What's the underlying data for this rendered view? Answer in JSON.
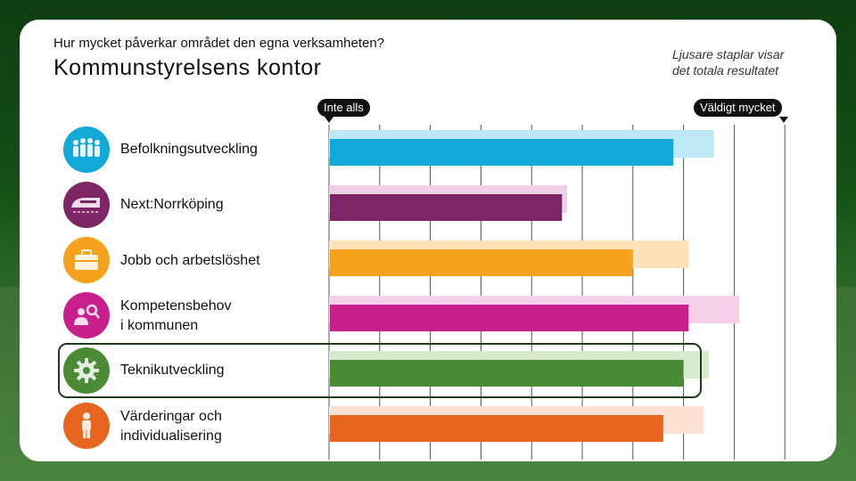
{
  "header": {
    "question": "Hur mycket påverkar området den egna verksamheten?",
    "title": "Kommunstyrelsens kontor",
    "note_line1": "Ljusare staplar visar",
    "note_line2": "det totala resultatet"
  },
  "scale": {
    "min_label": "Inte alls",
    "max_label": "Väldigt mycket"
  },
  "chart_data": {
    "type": "bar",
    "orientation": "horizontal",
    "xlim": [
      0,
      9
    ],
    "grid": true,
    "categories": [
      "Befolkningsutveckling",
      "Next:Norrköping",
      "Jobb och arbetslöshet",
      "Kompetensbehov i kommunen",
      "Teknikutveckling",
      "Värderingar och individualisering"
    ],
    "series": [
      {
        "values": [
          7.6,
          4.7,
          7.1,
          8.1,
          7.5,
          7.4
        ]
      },
      {
        "values": [
          6.8,
          4.6,
          6.0,
          7.1,
          7.0,
          6.6
        ]
      }
    ],
    "colors": {
      "dark": [
        "#12a9d8",
        "#7e2566",
        "#f5a21c",
        "#c81f8c",
        "#4c8b35",
        "#e8651f"
      ],
      "light": [
        "#bfe8f6",
        "#eed0e6",
        "#fde1b8",
        "#f6d0e8",
        "#d8ebcf",
        "#fbe0d3"
      ]
    },
    "highlighted": "Teknikutveckling"
  },
  "rows": [
    {
      "label_line1": "Befolkningsutveckling",
      "label_line2": "",
      "icon": "people-icon",
      "color": "#12a9d8"
    },
    {
      "label_line1": "Next:Norrköping",
      "label_line2": "",
      "icon": "train-icon",
      "color": "#7e2566"
    },
    {
      "label_line1": "Jobb och arbetslöshet",
      "label_line2": "",
      "icon": "briefcase-icon",
      "color": "#f5a21c"
    },
    {
      "label_line1": "Kompetensbehov",
      "label_line2": "i kommunen",
      "icon": "person-search-icon",
      "color": "#c81f8c"
    },
    {
      "label_line1": "Teknikutveckling",
      "label_line2": "",
      "icon": "gear-icon",
      "color": "#4c8b35"
    },
    {
      "label_line1": "Värderingar och",
      "label_line2": "individualisering",
      "icon": "person-icon",
      "color": "#e8651f"
    }
  ]
}
